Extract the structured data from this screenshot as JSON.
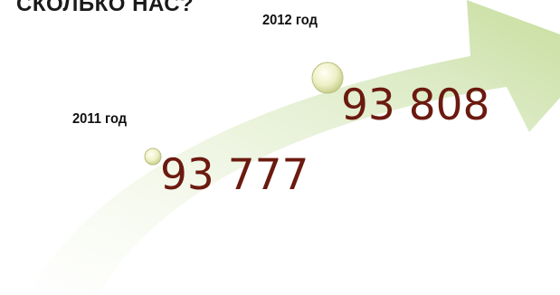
{
  "title": "СКОЛЬКО НАС?",
  "points": [
    {
      "year_label": "2011 год",
      "value": "93 777"
    },
    {
      "year_label": "2012 год",
      "value": "93 808"
    }
  ],
  "colors": {
    "arrow_light": "#f6faee",
    "arrow_mid": "#dcebc4",
    "arrow_dark": "#b9d39a",
    "value_text": "#6b1a10",
    "marker": "#e6eab0"
  }
}
